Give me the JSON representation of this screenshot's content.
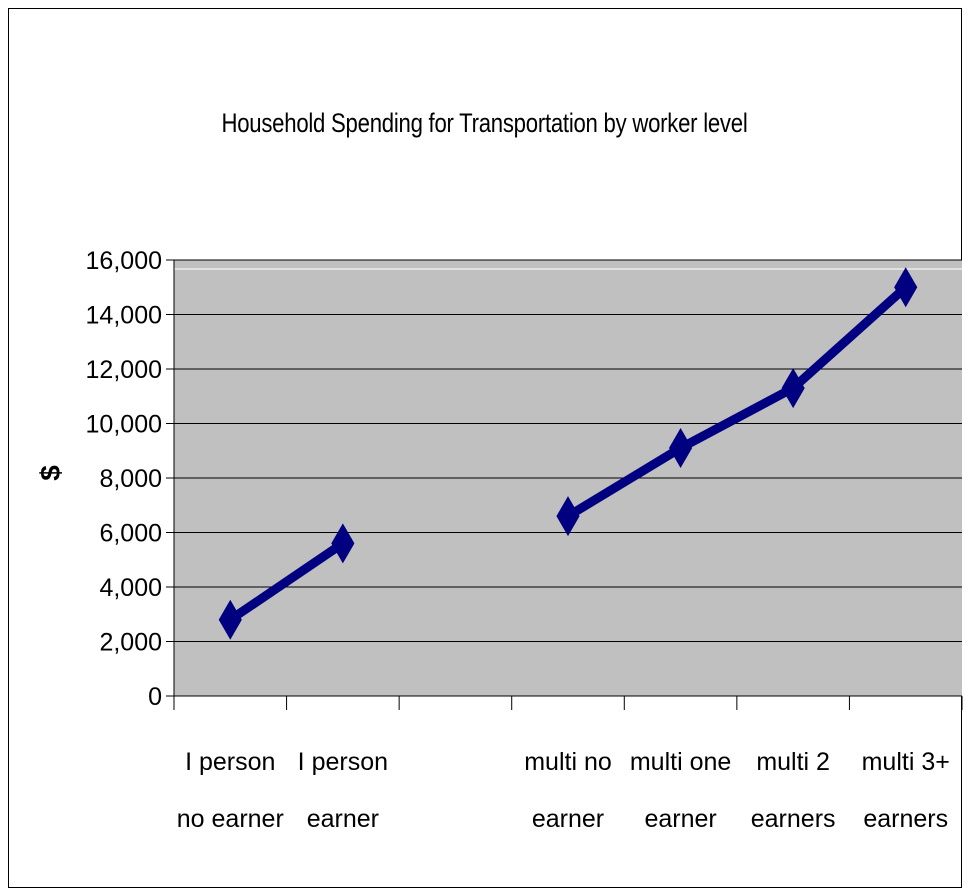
{
  "chart_data": {
    "type": "line",
    "title": "Household Spending for Transportation by worker level",
    "xlabel": "",
    "ylabel": "$",
    "ylim": [
      0,
      16000
    ],
    "yticks": [
      0,
      2000,
      4000,
      6000,
      8000,
      10000,
      12000,
      14000,
      16000
    ],
    "ytick_labels": [
      "0",
      "2,000",
      "4,000",
      "6,000",
      "8,000",
      "10,000",
      "12,000",
      "14,000",
      "16,000"
    ],
    "grid": true,
    "legend": "none",
    "categories": [
      [
        "I person",
        "no earner"
      ],
      [
        "I person",
        "earner"
      ],
      [
        "",
        ""
      ],
      [
        "multi no",
        "earner"
      ],
      [
        "multi one",
        "earner"
      ],
      [
        "multi 2",
        "earners"
      ],
      [
        "multi 3+",
        "earners"
      ]
    ],
    "series": [
      {
        "values": [
          2800,
          5600,
          null,
          6600,
          9100,
          11300,
          15000
        ],
        "color": "#000080",
        "marker": "diamond"
      }
    ],
    "plot_background": "#c0c0c0"
  }
}
